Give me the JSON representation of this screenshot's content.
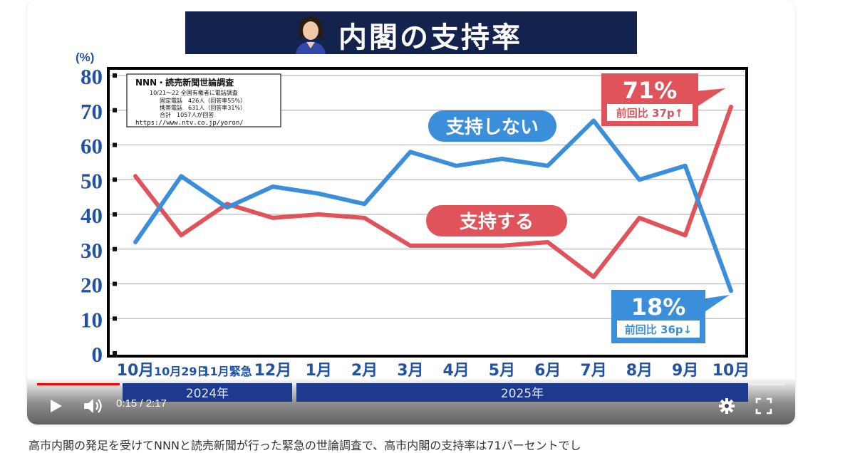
{
  "title": "内閣の支持率",
  "unit_label": "(%)",
  "source_box": {
    "line1": "NNN・読売新聞世論調査",
    "line2": "10/21～22 全国有権者に電話調査",
    "line3": "固定電話　426人（回答率55%）",
    "line4": "携帯電話　631人（回答率31%）",
    "line5": "合計　1057人が回答",
    "line6": "https://www.ntv.co.jp/yoron/"
  },
  "callouts": {
    "approve_label": "支持する",
    "disapprove_label": "支持しない",
    "approve_value": "71%",
    "approve_change": "前回比 37p↑",
    "disapprove_value": "18%",
    "disapprove_change": "前回比 36p↓"
  },
  "year_labels": [
    "2024年",
    "2025年"
  ],
  "colors": {
    "approve": "#e0535a",
    "disapprove": "#3b8fda",
    "axis_text": "#2352a3",
    "banner": "#14224e",
    "year_bar": "#1d3a8f"
  },
  "chart_data": {
    "type": "line",
    "title": "内閣の支持率",
    "ylabel": "(%)",
    "ylim": [
      0,
      80
    ],
    "yticks": [
      0,
      10,
      20,
      30,
      40,
      50,
      60,
      70,
      80
    ],
    "categories": [
      "10月",
      "10月29日",
      "11月緊急",
      "12月",
      "1月",
      "2月",
      "3月",
      "4月",
      "5月",
      "6月",
      "7月",
      "8月",
      "9月",
      "10月"
    ],
    "grid": true,
    "series": [
      {
        "name": "支持する",
        "color": "#e0535a",
        "values": [
          51,
          34,
          43,
          39,
          40,
          39,
          31,
          31,
          31,
          32,
          22,
          39,
          34,
          71
        ]
      },
      {
        "name": "支持しない",
        "color": "#3b8fda",
        "values": [
          32,
          51,
          42,
          48,
          46,
          43,
          58,
          54,
          56,
          54,
          67,
          50,
          54,
          18
        ]
      }
    ]
  },
  "player": {
    "time": "0:15 / 2:17",
    "progress": 0.11,
    "play_icon": "play-icon",
    "volume_icon": "volume-icon",
    "settings_icon": "gear-icon",
    "fullscreen_icon": "fullscreen-icon"
  },
  "caption": "高市内閣の発足を受けてNNNと読売新聞が行った緊急の世論調査で、高市内閣の支持率は71パーセントでし"
}
